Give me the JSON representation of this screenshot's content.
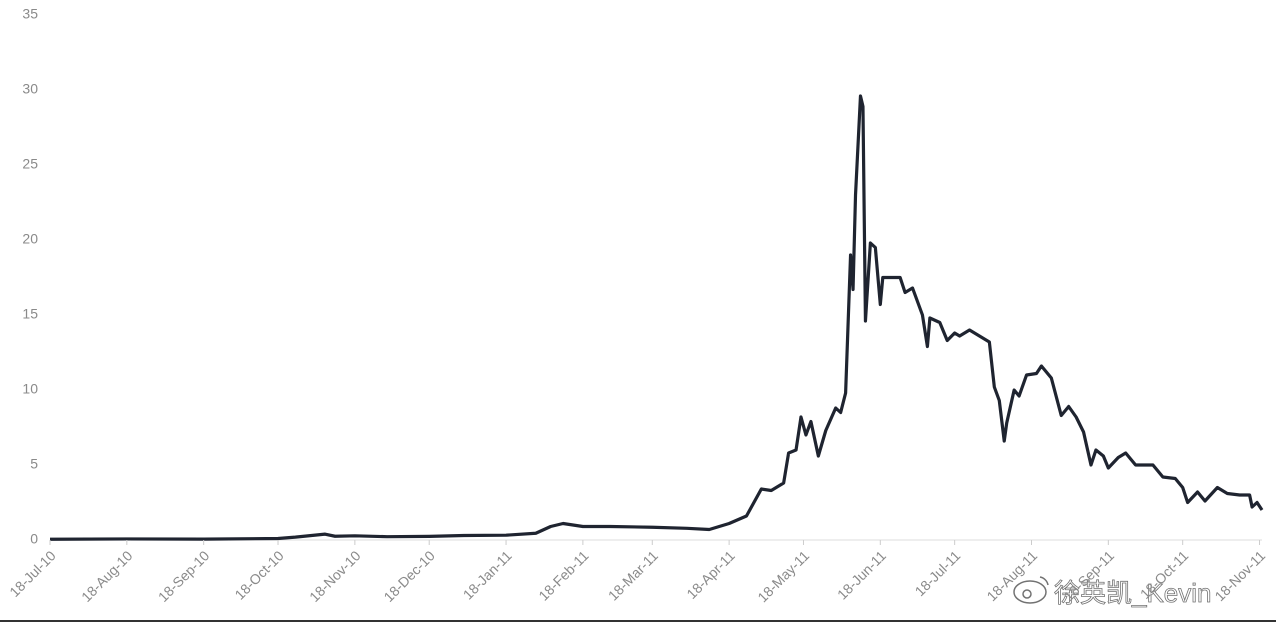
{
  "chart_data": {
    "type": "line",
    "x": [
      "2010-07-18",
      "2010-08-18",
      "2010-09-18",
      "2010-10-18",
      "2010-10-25",
      "2010-11-06",
      "2010-11-10",
      "2010-11-18",
      "2010-12-01",
      "2010-12-18",
      "2011-01-01",
      "2011-01-18",
      "2011-01-30",
      "2011-02-05",
      "2011-02-10",
      "2011-02-18",
      "2011-03-01",
      "2011-03-18",
      "2011-04-01",
      "2011-04-10",
      "2011-04-18",
      "2011-04-25",
      "2011-05-01",
      "2011-05-05",
      "2011-05-10",
      "2011-05-12",
      "2011-05-15",
      "2011-05-17",
      "2011-05-19",
      "2011-05-21",
      "2011-05-24",
      "2011-05-27",
      "2011-05-31",
      "2011-06-02",
      "2011-06-04",
      "2011-06-06",
      "2011-06-07",
      "2011-06-08",
      "2011-06-10",
      "2011-06-11",
      "2011-06-12",
      "2011-06-14",
      "2011-06-16",
      "2011-06-18",
      "2011-06-19",
      "2011-06-26",
      "2011-06-28",
      "2011-07-01",
      "2011-07-05",
      "2011-07-07",
      "2011-07-08",
      "2011-07-12",
      "2011-07-15",
      "2011-07-18",
      "2011-07-20",
      "2011-07-24",
      "2011-07-28",
      "2011-08-01",
      "2011-08-03",
      "2011-08-05",
      "2011-08-07",
      "2011-08-08",
      "2011-08-11",
      "2011-08-13",
      "2011-08-16",
      "2011-08-20",
      "2011-08-22",
      "2011-08-26",
      "2011-08-30",
      "2011-09-02",
      "2011-09-05",
      "2011-09-08",
      "2011-09-11",
      "2011-09-13",
      "2011-09-16",
      "2011-09-18",
      "2011-09-22",
      "2011-09-25",
      "2011-09-29",
      "2011-10-06",
      "2011-10-10",
      "2011-10-15",
      "2011-10-18",
      "2011-10-20",
      "2011-10-24",
      "2011-10-27",
      "2011-11-01",
      "2011-11-05",
      "2011-11-10",
      "2011-11-14",
      "2011-11-15",
      "2011-11-17",
      "2011-11-19"
    ],
    "series": [
      {
        "color": "#1f2430",
        "values": [
          0.05,
          0.07,
          0.06,
          0.1,
          0.19,
          0.39,
          0.25,
          0.28,
          0.22,
          0.24,
          0.3,
          0.32,
          0.45,
          0.9,
          1.1,
          0.9,
          0.9,
          0.85,
          0.78,
          0.7,
          1.1,
          1.6,
          3.4,
          3.3,
          3.8,
          5.8,
          6.0,
          8.2,
          7.0,
          7.9,
          5.6,
          7.3,
          8.8,
          8.5,
          9.8,
          19.0,
          16.7,
          23,
          29.6,
          28.9,
          14.6,
          19.8,
          19.5,
          15.7,
          17.5,
          17.5,
          16.5,
          16.8,
          15.0,
          12.9,
          14.8,
          14.5,
          13.3,
          13.8,
          13.6,
          14.0,
          13.6,
          13.2,
          10.2,
          9.3,
          6.6,
          7.8,
          10.0,
          9.6,
          11.0,
          11.1,
          11.6,
          10.8,
          8.3,
          8.9,
          8.2,
          7.2,
          5.0,
          6.0,
          5.6,
          4.8,
          5.5,
          5.8,
          5.0,
          5.0,
          4.2,
          4.1,
          3.5,
          2.5,
          3.2,
          2.6,
          3.5,
          3.1,
          3.0,
          3.0,
          2.2,
          2.5,
          2.0
        ]
      }
    ],
    "xlim": [
      "2010-07-18",
      "2011-11-19"
    ],
    "xticks": [
      {
        "value": "2010-07-18",
        "label": "18-Jul-10"
      },
      {
        "value": "2010-08-18",
        "label": "18-Aug-10"
      },
      {
        "value": "2010-09-18",
        "label": "18-Sep-10"
      },
      {
        "value": "2010-10-18",
        "label": "18-Oct-10"
      },
      {
        "value": "2010-11-18",
        "label": "18-Nov-10"
      },
      {
        "value": "2010-12-18",
        "label": "18-Dec-10"
      },
      {
        "value": "2011-01-18",
        "label": "18-Jan-11"
      },
      {
        "value": "2011-02-18",
        "label": "18-Feb-11"
      },
      {
        "value": "2011-03-18",
        "label": "18-Mar-11"
      },
      {
        "value": "2011-04-18",
        "label": "18-Apr-11"
      },
      {
        "value": "2011-05-18",
        "label": "18-May-11"
      },
      {
        "value": "2011-06-18",
        "label": "18-Jun-11"
      },
      {
        "value": "2011-07-18",
        "label": "18-Jul-11"
      },
      {
        "value": "2011-08-18",
        "label": "18-Aug-11"
      },
      {
        "value": "2011-09-18",
        "label": "18-Sep-11"
      },
      {
        "value": "2011-10-18",
        "label": "18-Oct-11"
      },
      {
        "value": "2011-11-18",
        "label": "18-Nov-11"
      }
    ],
    "ylim": [
      0,
      35
    ],
    "yticks": [
      0,
      5,
      10,
      15,
      20,
      25,
      30,
      35
    ],
    "grid": false,
    "watermark": "徐英凯_Kevin"
  }
}
